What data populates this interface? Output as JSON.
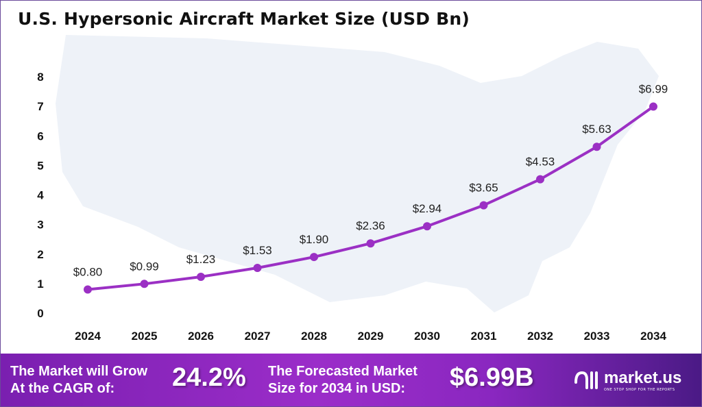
{
  "chart_data": {
    "type": "line",
    "title": "U.S. Hypersonic Aircraft Market Size (USD Bn)",
    "categories": [
      "2024",
      "2025",
      "2026",
      "2027",
      "2028",
      "2029",
      "2030",
      "2031",
      "2032",
      "2033",
      "2034"
    ],
    "values": [
      0.8,
      0.99,
      1.23,
      1.53,
      1.9,
      2.36,
      2.94,
      3.65,
      4.53,
      5.63,
      6.99
    ],
    "data_labels": [
      "$0.80",
      "$0.99",
      "$1.23",
      "$1.53",
      "$1.90",
      "$2.36",
      "$2.94",
      "$3.65",
      "$4.53",
      "$5.63",
      "$6.99"
    ],
    "yticks": [
      "0",
      "1",
      "2",
      "3",
      "4",
      "5",
      "6",
      "7",
      "8"
    ],
    "ylim": [
      0,
      8
    ],
    "grid": false,
    "line_color": "#9b30c4",
    "background": "faint US map silhouette"
  },
  "footer": {
    "cagr_label_1": "The Market will Grow",
    "cagr_label_2": "At the CAGR of:",
    "cagr_value": "24.2%",
    "forecast_label_1": "The Forecasted Market",
    "forecast_label_2": "Size for 2034 in USD:",
    "forecast_value": "$6.99B",
    "logo_text": "market.us",
    "logo_tagline": "ONE STOP SHOP FOR THE REPORTS"
  }
}
